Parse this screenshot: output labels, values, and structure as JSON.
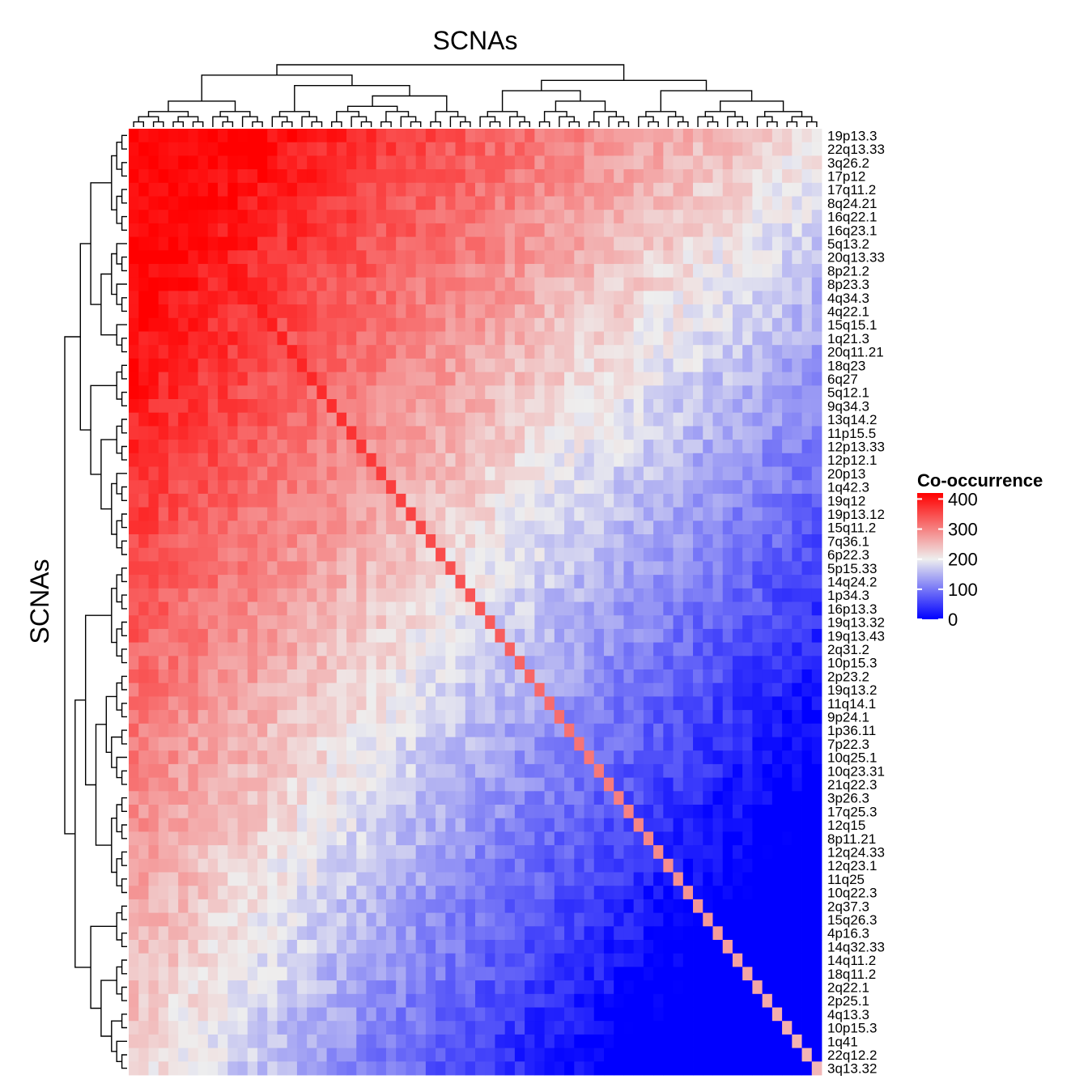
{
  "chart_data": {
    "type": "heatmap",
    "title": "SCNAs",
    "ylabel": "SCNAs",
    "legend": {
      "title": "Co-occurrence",
      "ticks": [
        400,
        300,
        200,
        100,
        0
      ],
      "tick_labels": [
        "400",
        "300",
        "200",
        "100",
        "0"
      ],
      "placement": "right",
      "range": [
        0,
        420
      ]
    },
    "colors": {
      "low": "#0000ff",
      "mid": "#eeeeee",
      "high": "#ff0000",
      "mid_value": 200
    },
    "rows": [
      "19p13.3",
      "22q13.33",
      "3q26.2",
      "17p12",
      "17q11.2",
      "8q24.21",
      "16q22.1",
      "16q23.1",
      "5q13.2",
      "20q13.33",
      "8p21.2",
      "8p23.3",
      "4q34.3",
      "4q22.1",
      "15q15.1",
      "1q21.3",
      "20q11.21",
      "18q23",
      "6q27",
      "5q12.1",
      "9q34.3",
      "13q14.2",
      "11p15.5",
      "12p13.33",
      "12p12.1",
      "20p13",
      "1q42.3",
      "19q12",
      "19p13.12",
      "15q11.2",
      "7q36.1",
      "6p22.3",
      "5p15.33",
      "14q24.2",
      "1p34.3",
      "16p13.3",
      "19q13.32",
      "19q13.43",
      "2q31.2",
      "10p15.3",
      "2p23.2",
      "19q13.2",
      "11q14.1",
      "9p24.1",
      "1p36.11",
      "7p22.3",
      "10q25.1",
      "10q23.31",
      "21q22.3",
      "3p26.3",
      "17q25.3",
      "12q15",
      "8p11.21",
      "12q24.33",
      "12q23.1",
      "11q25",
      "10q22.3",
      "2q37.3",
      "15q26.3",
      "4p16.3",
      "14q32.33",
      "14q11.2",
      "18q11.2",
      "2q22.1",
      "2p25.1",
      "4q13.3",
      "10p15.3",
      "1q41",
      "22q12.2",
      "3q13.32"
    ],
    "columns_note": "same SCNA set as rows, hierarchically clustered",
    "column_count": 70,
    "value_description": "pairwise co-occurrence count; high values cluster at top-left, low values at bottom-right; diagonal shows per-SCNA totals",
    "column_dendrogram_groups": [
      8,
      6,
      6,
      10,
      5,
      6,
      5,
      5,
      6,
      6,
      7
    ],
    "row_dendrogram_groups": [
      8,
      6,
      3,
      4,
      4,
      7,
      8,
      9,
      8,
      4,
      4,
      5
    ]
  }
}
